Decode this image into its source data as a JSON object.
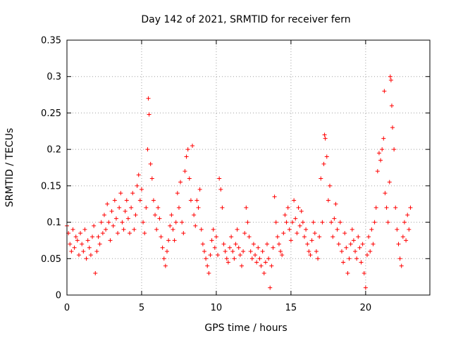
{
  "chart_data": {
    "type": "scatter",
    "title": "Day 142 of 2021, SRMTID for receiver fern",
    "xlabel": "GPS time / hours",
    "ylabel": "SRMTID / TECUs",
    "xlim": [
      0,
      24.3
    ],
    "ylim": [
      0,
      0.35
    ],
    "x_ticks": [
      0,
      5,
      10,
      15,
      20
    ],
    "y_ticks": [
      0,
      0.05,
      0.1,
      0.15,
      0.2,
      0.25,
      0.3,
      0.35
    ],
    "x_tick_labels": [
      "0",
      "5",
      "10",
      "15",
      "20"
    ],
    "y_tick_labels": [
      "0",
      "0.05",
      "0.1",
      "0.15",
      "0.2",
      "0.25",
      "0.3",
      "0.35"
    ],
    "grid": true,
    "marker": "+",
    "color": "#ff0000",
    "series": [
      {
        "name": "SRMTID",
        "points": [
          [
            0.0,
            0.095
          ],
          [
            0.1,
            0.085
          ],
          [
            0.2,
            0.07
          ],
          [
            0.3,
            0.06
          ],
          [
            0.4,
            0.09
          ],
          [
            0.5,
            0.065
          ],
          [
            0.6,
            0.08
          ],
          [
            0.7,
            0.075
          ],
          [
            0.8,
            0.055
          ],
          [
            0.9,
            0.085
          ],
          [
            1.0,
            0.07
          ],
          [
            1.1,
            0.06
          ],
          [
            1.2,
            0.09
          ],
          [
            1.3,
            0.05
          ],
          [
            1.4,
            0.075
          ],
          [
            1.5,
            0.065
          ],
          [
            1.6,
            0.055
          ],
          [
            1.7,
            0.08
          ],
          [
            1.8,
            0.095
          ],
          [
            1.9,
            0.03
          ],
          [
            2.0,
            0.06
          ],
          [
            2.1,
            0.08
          ],
          [
            2.2,
            0.07
          ],
          [
            2.3,
            0.1
          ],
          [
            2.4,
            0.085
          ],
          [
            2.5,
            0.11
          ],
          [
            2.6,
            0.09
          ],
          [
            2.7,
            0.125
          ],
          [
            2.8,
            0.1
          ],
          [
            2.9,
            0.075
          ],
          [
            3.0,
            0.115
          ],
          [
            3.1,
            0.095
          ],
          [
            3.2,
            0.13
          ],
          [
            3.3,
            0.105
          ],
          [
            3.4,
            0.085
          ],
          [
            3.5,
            0.12
          ],
          [
            3.6,
            0.14
          ],
          [
            3.7,
            0.1
          ],
          [
            3.8,
            0.09
          ],
          [
            3.9,
            0.115
          ],
          [
            4.0,
            0.13
          ],
          [
            4.1,
            0.105
          ],
          [
            4.2,
            0.085
          ],
          [
            4.3,
            0.12
          ],
          [
            4.4,
            0.14
          ],
          [
            4.5,
            0.09
          ],
          [
            4.6,
            0.11
          ],
          [
            4.7,
            0.15
          ],
          [
            4.8,
            0.165
          ],
          [
            4.9,
            0.13
          ],
          [
            5.0,
            0.145
          ],
          [
            5.1,
            0.1
          ],
          [
            5.2,
            0.085
          ],
          [
            5.3,
            0.12
          ],
          [
            5.4,
            0.2
          ],
          [
            5.45,
            0.27
          ],
          [
            5.5,
            0.248
          ],
          [
            5.6,
            0.18
          ],
          [
            5.7,
            0.16
          ],
          [
            5.8,
            0.13
          ],
          [
            5.9,
            0.11
          ],
          [
            6.0,
            0.09
          ],
          [
            6.1,
            0.12
          ],
          [
            6.2,
            0.105
          ],
          [
            6.3,
            0.08
          ],
          [
            6.4,
            0.065
          ],
          [
            6.5,
            0.05
          ],
          [
            6.6,
            0.04
          ],
          [
            6.7,
            0.06
          ],
          [
            6.8,
            0.075
          ],
          [
            6.9,
            0.095
          ],
          [
            7.0,
            0.11
          ],
          [
            7.1,
            0.09
          ],
          [
            7.2,
            0.075
          ],
          [
            7.3,
            0.1
          ],
          [
            7.4,
            0.14
          ],
          [
            7.5,
            0.12
          ],
          [
            7.6,
            0.155
          ],
          [
            7.7,
            0.1
          ],
          [
            7.8,
            0.085
          ],
          [
            7.9,
            0.17
          ],
          [
            8.0,
            0.19
          ],
          [
            8.1,
            0.2
          ],
          [
            8.2,
            0.16
          ],
          [
            8.3,
            0.13
          ],
          [
            8.4,
            0.205
          ],
          [
            8.5,
            0.11
          ],
          [
            8.6,
            0.095
          ],
          [
            8.7,
            0.13
          ],
          [
            8.8,
            0.12
          ],
          [
            8.9,
            0.145
          ],
          [
            9.0,
            0.09
          ],
          [
            9.1,
            0.07
          ],
          [
            9.2,
            0.06
          ],
          [
            9.3,
            0.05
          ],
          [
            9.4,
            0.04
          ],
          [
            9.5,
            0.03
          ],
          [
            9.6,
            0.055
          ],
          [
            9.7,
            0.075
          ],
          [
            9.8,
            0.09
          ],
          [
            9.9,
            0.065
          ],
          [
            10.0,
            0.08
          ],
          [
            10.1,
            0.055
          ],
          [
            10.2,
            0.16
          ],
          [
            10.3,
            0.145
          ],
          [
            10.4,
            0.12
          ],
          [
            10.5,
            0.07
          ],
          [
            10.6,
            0.06
          ],
          [
            10.7,
            0.05
          ],
          [
            10.8,
            0.045
          ],
          [
            10.9,
            0.065
          ],
          [
            11.0,
            0.08
          ],
          [
            11.1,
            0.06
          ],
          [
            11.2,
            0.05
          ],
          [
            11.3,
            0.07
          ],
          [
            11.4,
            0.09
          ],
          [
            11.5,
            0.065
          ],
          [
            11.6,
            0.055
          ],
          [
            11.7,
            0.04
          ],
          [
            11.8,
            0.06
          ],
          [
            11.9,
            0.085
          ],
          [
            12.0,
            0.12
          ],
          [
            12.1,
            0.1
          ],
          [
            12.2,
            0.08
          ],
          [
            12.3,
            0.06
          ],
          [
            12.4,
            0.05
          ],
          [
            12.5,
            0.07
          ],
          [
            12.6,
            0.055
          ],
          [
            12.7,
            0.045
          ],
          [
            12.8,
            0.065
          ],
          [
            12.9,
            0.05
          ],
          [
            13.0,
            0.04
          ],
          [
            13.1,
            0.06
          ],
          [
            13.2,
            0.03
          ],
          [
            13.3,
            0.045
          ],
          [
            13.4,
            0.07
          ],
          [
            13.5,
            0.05
          ],
          [
            13.6,
            0.01
          ],
          [
            13.7,
            0.04
          ],
          [
            13.8,
            0.065
          ],
          [
            13.9,
            0.135
          ],
          [
            14.0,
            0.1
          ],
          [
            14.1,
            0.08
          ],
          [
            14.2,
            0.07
          ],
          [
            14.3,
            0.06
          ],
          [
            14.4,
            0.055
          ],
          [
            14.5,
            0.085
          ],
          [
            14.6,
            0.11
          ],
          [
            14.7,
            0.1
          ],
          [
            14.8,
            0.12
          ],
          [
            14.9,
            0.09
          ],
          [
            15.0,
            0.075
          ],
          [
            15.1,
            0.1
          ],
          [
            15.2,
            0.13
          ],
          [
            15.3,
            0.105
          ],
          [
            15.4,
            0.085
          ],
          [
            15.5,
            0.12
          ],
          [
            15.6,
            0.095
          ],
          [
            15.7,
            0.115
          ],
          [
            15.8,
            0.1
          ],
          [
            15.9,
            0.08
          ],
          [
            16.0,
            0.09
          ],
          [
            16.1,
            0.07
          ],
          [
            16.2,
            0.06
          ],
          [
            16.3,
            0.055
          ],
          [
            16.4,
            0.075
          ],
          [
            16.5,
            0.1
          ],
          [
            16.6,
            0.085
          ],
          [
            16.7,
            0.06
          ],
          [
            16.8,
            0.05
          ],
          [
            16.9,
            0.08
          ],
          [
            17.0,
            0.16
          ],
          [
            17.1,
            0.1
          ],
          [
            17.2,
            0.18
          ],
          [
            17.25,
            0.22
          ],
          [
            17.3,
            0.215
          ],
          [
            17.4,
            0.19
          ],
          [
            17.5,
            0.13
          ],
          [
            17.6,
            0.15
          ],
          [
            17.7,
            0.1
          ],
          [
            17.8,
            0.08
          ],
          [
            17.9,
            0.105
          ],
          [
            18.0,
            0.125
          ],
          [
            18.1,
            0.09
          ],
          [
            18.2,
            0.07
          ],
          [
            18.3,
            0.1
          ],
          [
            18.4,
            0.06
          ],
          [
            18.5,
            0.045
          ],
          [
            18.6,
            0.085
          ],
          [
            18.7,
            0.065
          ],
          [
            18.8,
            0.03
          ],
          [
            18.9,
            0.05
          ],
          [
            19.0,
            0.07
          ],
          [
            19.1,
            0.09
          ],
          [
            19.2,
            0.075
          ],
          [
            19.3,
            0.06
          ],
          [
            19.4,
            0.05
          ],
          [
            19.5,
            0.08
          ],
          [
            19.6,
            0.065
          ],
          [
            19.7,
            0.045
          ],
          [
            19.8,
            0.07
          ],
          [
            19.9,
            0.03
          ],
          [
            20.0,
            0.01
          ],
          [
            20.1,
            0.055
          ],
          [
            20.2,
            0.08
          ],
          [
            20.3,
            0.06
          ],
          [
            20.4,
            0.09
          ],
          [
            20.5,
            0.07
          ],
          [
            20.6,
            0.1
          ],
          [
            20.7,
            0.12
          ],
          [
            20.8,
            0.17
          ],
          [
            20.9,
            0.195
          ],
          [
            21.0,
            0.185
          ],
          [
            21.1,
            0.2
          ],
          [
            21.2,
            0.215
          ],
          [
            21.25,
            0.28
          ],
          [
            21.3,
            0.14
          ],
          [
            21.4,
            0.12
          ],
          [
            21.5,
            0.1
          ],
          [
            21.6,
            0.155
          ],
          [
            21.65,
            0.3
          ],
          [
            21.7,
            0.295
          ],
          [
            21.75,
            0.26
          ],
          [
            21.8,
            0.23
          ],
          [
            21.9,
            0.2
          ],
          [
            22.0,
            0.12
          ],
          [
            22.1,
            0.09
          ],
          [
            22.2,
            0.07
          ],
          [
            22.3,
            0.05
          ],
          [
            22.4,
            0.04
          ],
          [
            22.5,
            0.08
          ],
          [
            22.6,
            0.1
          ],
          [
            22.7,
            0.075
          ],
          [
            22.8,
            0.11
          ],
          [
            22.9,
            0.09
          ],
          [
            23.0,
            0.12
          ]
        ]
      }
    ]
  }
}
